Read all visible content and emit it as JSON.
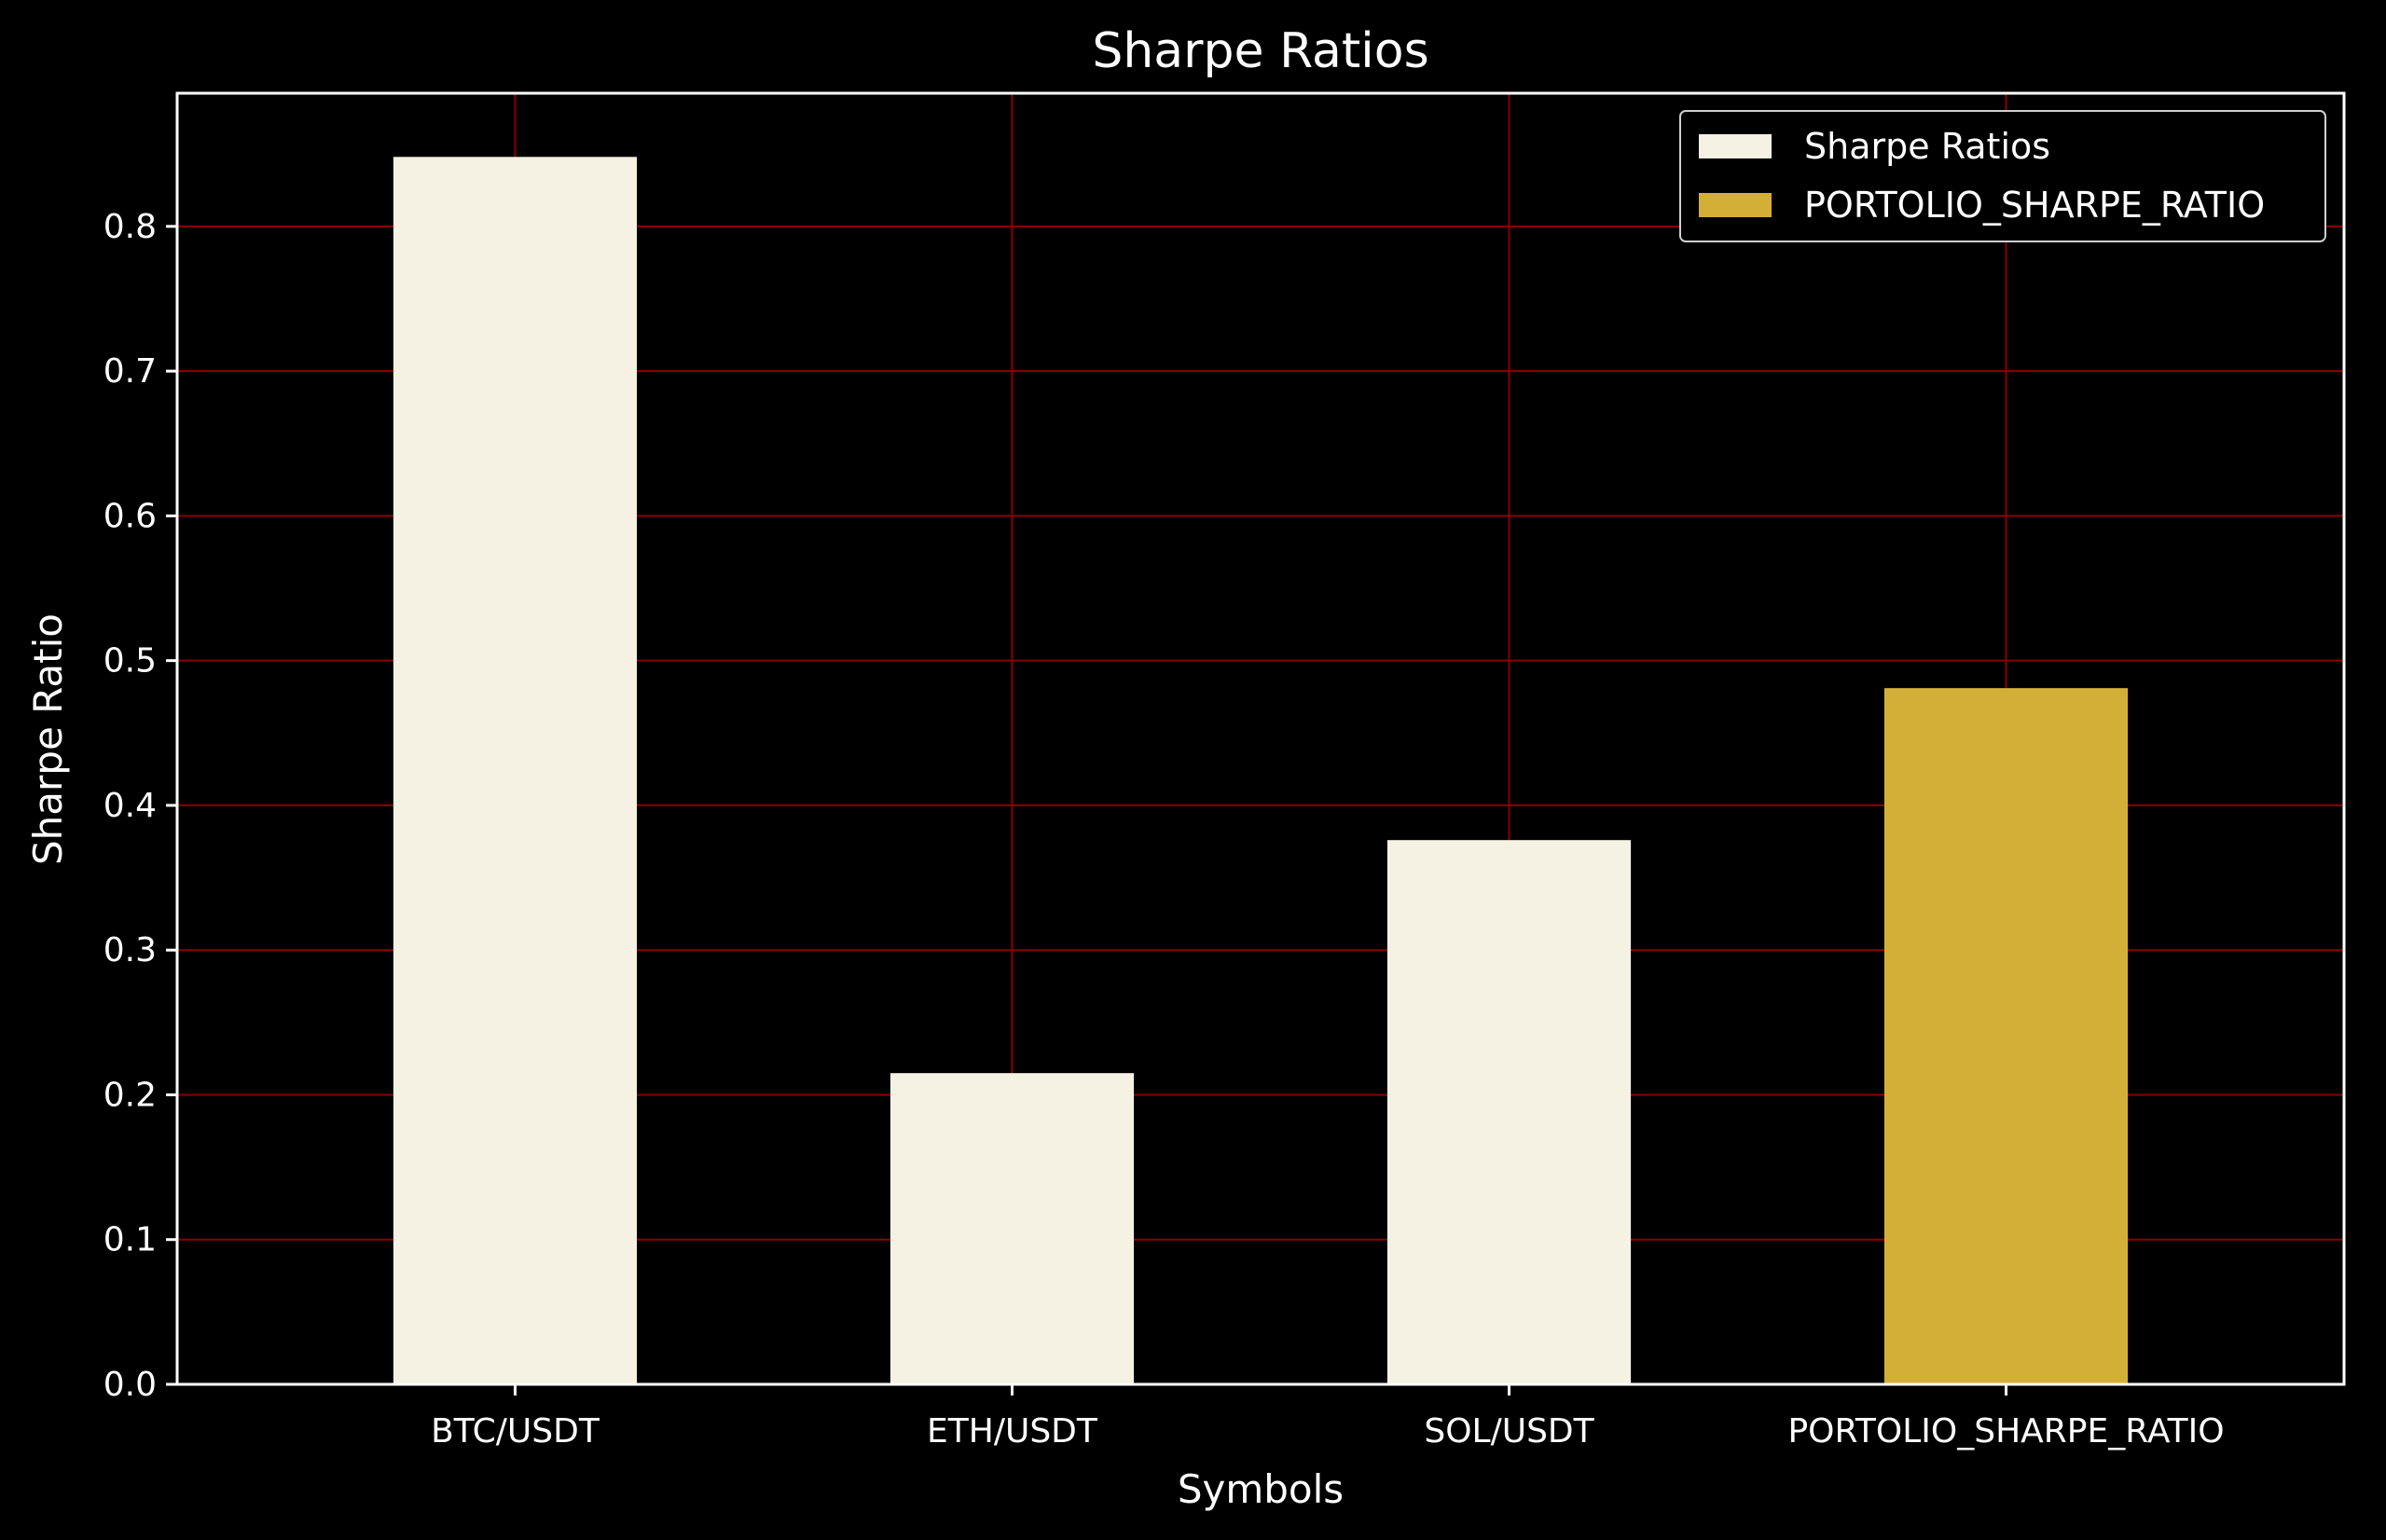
{
  "chart_data": {
    "type": "bar",
    "title": "Sharpe Ratios",
    "xlabel": "Symbols",
    "ylabel": "Sharpe Ratio",
    "categories": [
      "BTC/USDT",
      "ETH/USDT",
      "SOL/USDT",
      "PORTOLIO_SHARPE_RATIO"
    ],
    "series": [
      {
        "name": "Sharpe Ratios",
        "values": [
          0.848,
          0.215,
          0.376,
          null
        ],
        "color": "#f5f2e3"
      },
      {
        "name": "PORTOLIO_SHARPE_RATIO",
        "values": [
          null,
          null,
          null,
          0.481
        ],
        "color": "#d4af37"
      }
    ],
    "yticks": [
      "0.0",
      "0.1",
      "0.2",
      "0.3",
      "0.4",
      "0.5",
      "0.6",
      "0.7",
      "0.8"
    ],
    "ylim": [
      0,
      0.892
    ],
    "grid": true,
    "grid_color": "#8b0000",
    "background": "#000000",
    "legend_position": "top-right"
  }
}
